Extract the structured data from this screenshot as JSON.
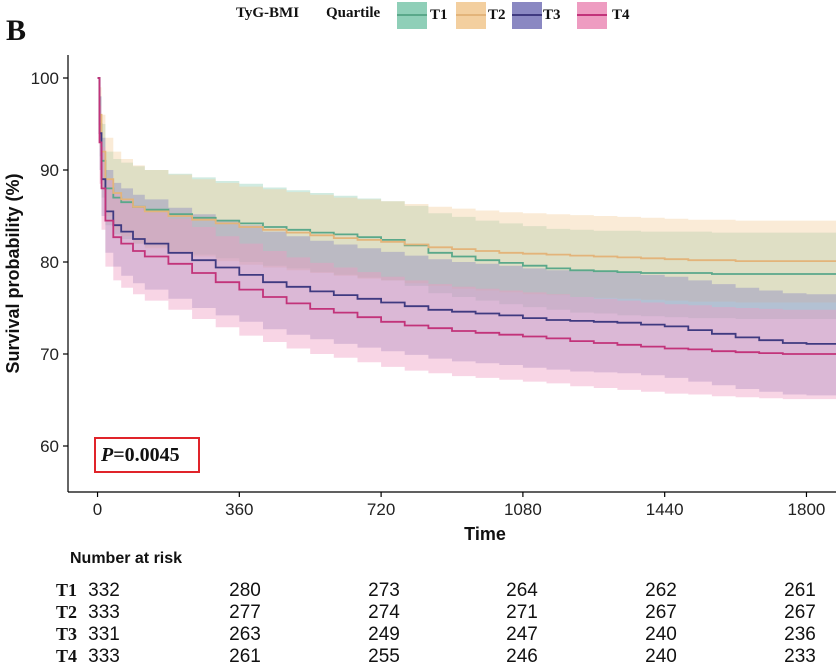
{
  "panel_label": "B",
  "p_value": {
    "prefix": "P",
    "text": "=0.0045",
    "border_color": "#e0242a"
  },
  "legend": {
    "title": "TyG-BMI",
    "subtitle": "Quartile",
    "items": [
      {
        "label": "T1",
        "color": "#5aa88a",
        "fill": "#8fcfb8"
      },
      {
        "label": "T2",
        "color": "#e3b47a",
        "fill": "#f3cf9f"
      },
      {
        "label": "T3",
        "color": "#3f3a80",
        "fill": "#8a88c2"
      },
      {
        "label": "T4",
        "color": "#c2337a",
        "fill": "#ee9cc1"
      }
    ]
  },
  "chart_data": {
    "type": "line",
    "xlabel": "Time",
    "ylabel": "Survival probability (%)",
    "xlim": [
      -75,
      1875
    ],
    "ylim": [
      55,
      102.5
    ],
    "xticks": [
      0,
      360,
      720,
      1080,
      1440,
      1800
    ],
    "yticks": [
      60,
      70,
      80,
      90,
      100
    ],
    "grid": false,
    "series": [
      {
        "name": "T1",
        "x": [
          0,
          5,
          10,
          20,
          40,
          60,
          90,
          120,
          180,
          240,
          300,
          360,
          420,
          480,
          540,
          600,
          660,
          720,
          780,
          840,
          900,
          960,
          1020,
          1080,
          1140,
          1200,
          1260,
          1320,
          1380,
          1440,
          1500,
          1560,
          1620,
          1680,
          1740,
          1800,
          1875
        ],
        "y": [
          100,
          95,
          91,
          88,
          87,
          86.5,
          86,
          85.7,
          85.2,
          84.8,
          84.5,
          84.2,
          83.8,
          83.5,
          83.2,
          83,
          82.7,
          82.4,
          81.8,
          81,
          80.6,
          80.2,
          79.9,
          79.6,
          79.3,
          79.1,
          79,
          78.9,
          78.8,
          78.8,
          78.8,
          78.7,
          78.7,
          78.7,
          78.7,
          78.7,
          78.7
        ],
        "lower": [
          100,
          91.5,
          87,
          84,
          83,
          82.5,
          82,
          81.7,
          81.2,
          80.8,
          80.4,
          80,
          79.6,
          79.3,
          78.9,
          78.6,
          78.3,
          78,
          77.4,
          76.6,
          76.2,
          75.8,
          75.4,
          75.1,
          74.8,
          74.5,
          74.4,
          74.2,
          74.1,
          74,
          73.9,
          73.9,
          73.8,
          73.8,
          73.8,
          73.8,
          73.8
        ],
        "upper": [
          100,
          98,
          95,
          92,
          91.2,
          90.8,
          90.4,
          90,
          89.6,
          89.2,
          88.8,
          88.5,
          88.1,
          87.8,
          87.5,
          87.2,
          86.9,
          86.6,
          86.1,
          85.3,
          84.9,
          84.5,
          84.2,
          83.9,
          83.6,
          83.5,
          83.4,
          83.4,
          83.3,
          83.3,
          83.3,
          83.2,
          83.2,
          83.2,
          83.2,
          83.2,
          83.2
        ]
      },
      {
        "name": "T2",
        "x": [
          0,
          5,
          10,
          20,
          40,
          60,
          90,
          120,
          180,
          240,
          300,
          360,
          420,
          480,
          540,
          600,
          660,
          720,
          780,
          840,
          900,
          960,
          1020,
          1080,
          1140,
          1200,
          1260,
          1320,
          1380,
          1440,
          1500,
          1560,
          1620,
          1680,
          1740,
          1800,
          1875
        ],
        "y": [
          100,
          96,
          92,
          89,
          87.5,
          86.8,
          86,
          85.5,
          85,
          84.6,
          84.2,
          83.8,
          83.5,
          83.2,
          82.9,
          82.6,
          82.4,
          82.2,
          81.9,
          81.6,
          81.4,
          81.2,
          81,
          80.9,
          80.8,
          80.7,
          80.6,
          80.5,
          80.4,
          80.3,
          80.2,
          80.2,
          80.1,
          80.1,
          80.1,
          80.1,
          80.1
        ],
        "lower": [
          100,
          92.5,
          88,
          85,
          83.5,
          82.8,
          82,
          81.5,
          81,
          80.6,
          80.1,
          79.7,
          79.4,
          79.1,
          78.8,
          78.5,
          78.2,
          78,
          77.7,
          77.4,
          77.1,
          76.9,
          76.7,
          76.5,
          76.4,
          76.2,
          76.1,
          76,
          75.9,
          75.8,
          75.7,
          75.7,
          75.6,
          75.6,
          75.6,
          75.6,
          75.6
        ],
        "upper": [
          100,
          99,
          96,
          93.5,
          92,
          91.2,
          90.5,
          90,
          89.5,
          89,
          88.6,
          88.2,
          87.9,
          87.6,
          87.3,
          87,
          86.8,
          86.6,
          86.3,
          86,
          85.8,
          85.6,
          85.4,
          85.3,
          85.2,
          85.1,
          85,
          84.9,
          84.8,
          84.7,
          84.6,
          84.6,
          84.5,
          84.5,
          84.5,
          84.5,
          84.5
        ]
      },
      {
        "name": "T3",
        "x": [
          0,
          5,
          10,
          20,
          40,
          60,
          90,
          120,
          180,
          240,
          300,
          360,
          420,
          480,
          540,
          600,
          660,
          720,
          780,
          840,
          900,
          960,
          1020,
          1080,
          1140,
          1200,
          1260,
          1320,
          1380,
          1440,
          1500,
          1560,
          1620,
          1680,
          1740,
          1800,
          1875
        ],
        "y": [
          100,
          94,
          89,
          85.5,
          84,
          83.3,
          82.5,
          82,
          81,
          80.2,
          79.4,
          78.6,
          77.8,
          77.3,
          76.8,
          76.4,
          76,
          75.6,
          75.2,
          74.8,
          74.6,
          74.4,
          74.2,
          73.9,
          73.7,
          73.6,
          73.5,
          73.4,
          73.2,
          73,
          72.6,
          72.2,
          71.8,
          71.5,
          71.2,
          71.1,
          71.1
        ],
        "lower": [
          100,
          90,
          85,
          81,
          79.5,
          78.5,
          77.7,
          77,
          76,
          75,
          74.2,
          73.5,
          72.7,
          72.1,
          71.6,
          71.1,
          70.7,
          70.3,
          69.9,
          69.5,
          69.2,
          69,
          68.8,
          68.5,
          68.3,
          68.1,
          68,
          67.9,
          67.7,
          67.4,
          67,
          66.6,
          66.2,
          65.9,
          65.6,
          65.5,
          65.5
        ],
        "upper": [
          100,
          98,
          93.5,
          90,
          88.6,
          88,
          87.3,
          86.8,
          85.9,
          85.2,
          84.6,
          84,
          83.3,
          82.8,
          82.3,
          81.9,
          81.5,
          81.1,
          80.7,
          80.3,
          80,
          79.8,
          79.6,
          79.3,
          79.1,
          79,
          78.9,
          78.8,
          78.6,
          78.4,
          78,
          77.6,
          77.2,
          76.9,
          76.6,
          76.5,
          76.5
        ]
      },
      {
        "name": "T4",
        "x": [
          0,
          5,
          10,
          20,
          40,
          60,
          90,
          120,
          180,
          240,
          300,
          360,
          420,
          480,
          540,
          600,
          660,
          720,
          780,
          840,
          900,
          960,
          1020,
          1080,
          1140,
          1200,
          1260,
          1320,
          1380,
          1440,
          1500,
          1560,
          1620,
          1680,
          1740,
          1800,
          1875
        ],
        "y": [
          100,
          93,
          88,
          84.5,
          82.7,
          82,
          81.2,
          80.6,
          79.8,
          78.8,
          77.8,
          77,
          76.2,
          75.5,
          74.9,
          74.5,
          74,
          73.5,
          73.1,
          72.8,
          72.5,
          72.3,
          72.1,
          71.9,
          71.7,
          71.4,
          71.2,
          71,
          70.8,
          70.6,
          70.5,
          70.3,
          70.2,
          70.1,
          70,
          70,
          70
        ],
        "lower": [
          100,
          88.5,
          83.5,
          79.5,
          78,
          77.2,
          76.5,
          75.8,
          74.8,
          73.8,
          72.9,
          72,
          71.3,
          70.6,
          70,
          69.6,
          69.1,
          68.6,
          68.2,
          67.9,
          67.6,
          67.4,
          67.2,
          67,
          66.8,
          66.5,
          66.3,
          66.1,
          65.9,
          65.7,
          65.6,
          65.4,
          65.3,
          65.2,
          65.1,
          65.1,
          65.1
        ],
        "upper": [
          100,
          97,
          92.5,
          89,
          87.4,
          86.7,
          86,
          85.4,
          84.7,
          83.8,
          82.8,
          82,
          81.2,
          80.5,
          79.9,
          79.4,
          78.9,
          78.4,
          78,
          77.6,
          77.3,
          77.1,
          76.9,
          76.7,
          76.5,
          76.2,
          76,
          75.8,
          75.6,
          75.4,
          75.3,
          75.1,
          75,
          74.9,
          74.8,
          74.8,
          74.8
        ]
      }
    ]
  },
  "risk_table": {
    "title": "Number at risk",
    "times": [
      0,
      360,
      720,
      1080,
      1440,
      1800
    ],
    "rows": [
      {
        "group": "T1",
        "values": [
          "332",
          "280",
          "273",
          "264",
          "262",
          "261"
        ]
      },
      {
        "group": "T2",
        "values": [
          "333",
          "277",
          "274",
          "271",
          "267",
          "267"
        ]
      },
      {
        "group": "T3",
        "values": [
          "331",
          "263",
          "249",
          "247",
          "240",
          "236"
        ]
      },
      {
        "group": "T4",
        "values": [
          "333",
          "261",
          "255",
          "246",
          "240",
          "233"
        ]
      }
    ]
  }
}
